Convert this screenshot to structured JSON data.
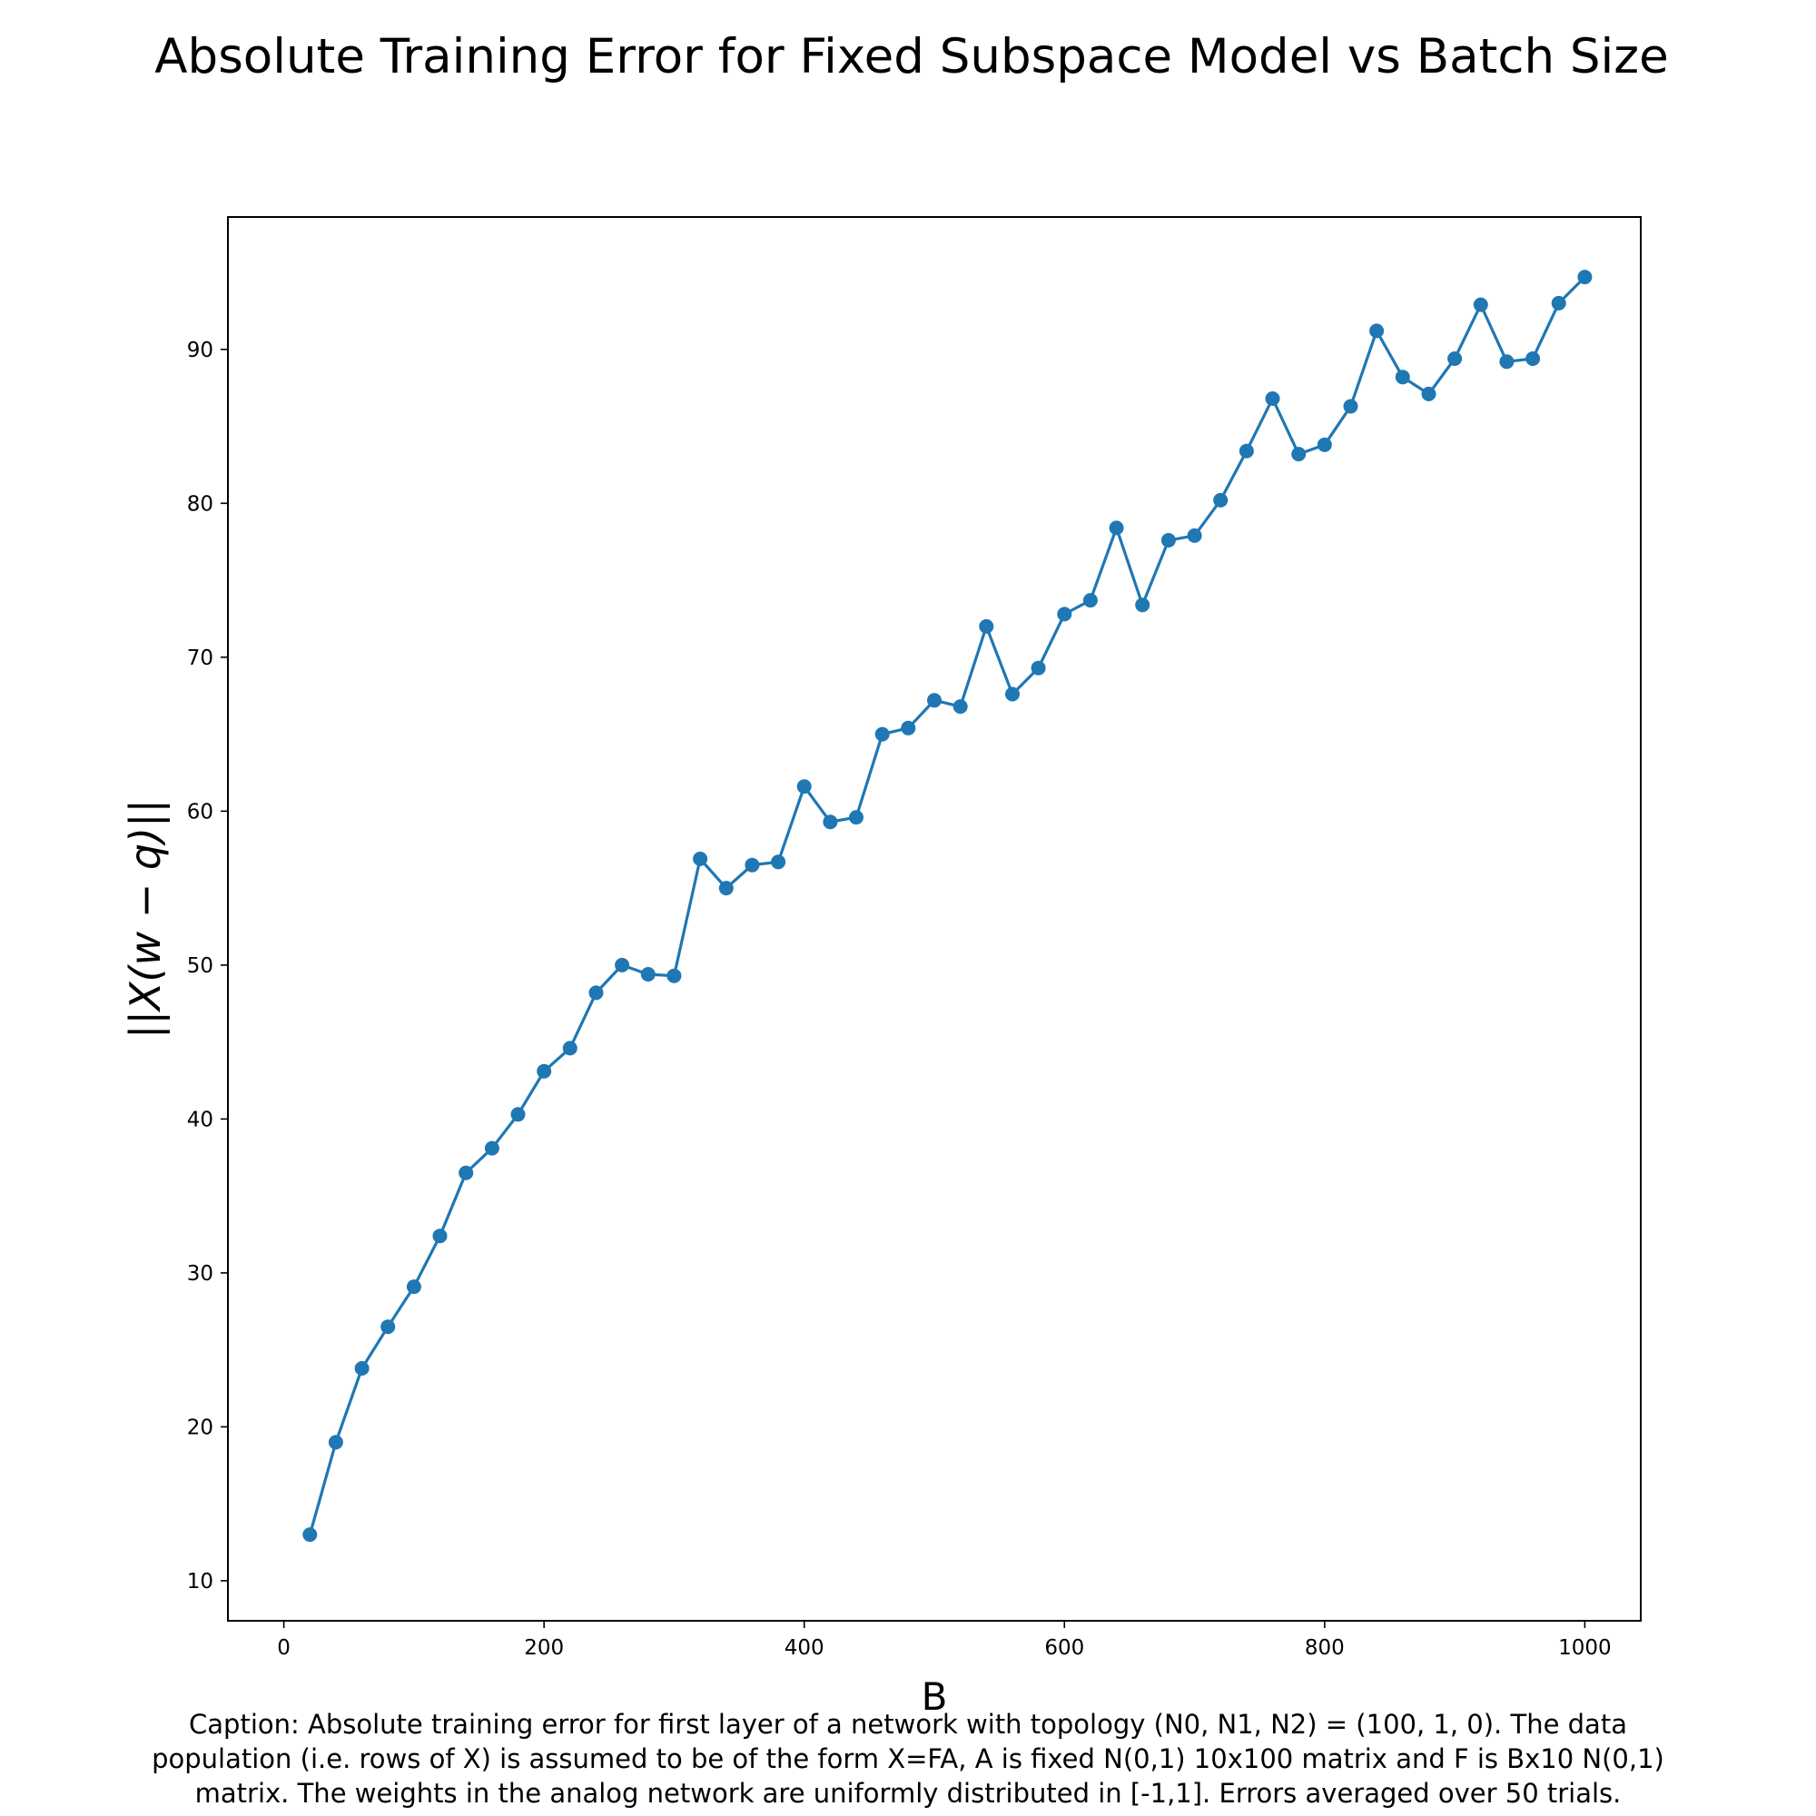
{
  "chart_data": {
    "type": "line",
    "title": "Absolute Training Error for Fixed Subspace Model vs Batch Size",
    "xlabel": "B",
    "ylabel": "||X(w − q)||",
    "xlim": [
      -43,
      1043
    ],
    "ylim": [
      7.4,
      98.6
    ],
    "xticks": [
      0,
      200,
      400,
      600,
      800,
      1000
    ],
    "yticks": [
      10,
      20,
      30,
      40,
      50,
      60,
      70,
      80,
      90
    ],
    "grid": false,
    "line_color": "#1f77b4",
    "marker": "circle",
    "series": [
      {
        "x": [
          20,
          40,
          60,
          80,
          100,
          120,
          140,
          160,
          180,
          200,
          220,
          240,
          260,
          280,
          300,
          320,
          340,
          360,
          380,
          400,
          420,
          440,
          460,
          480,
          500,
          520,
          540,
          560,
          580,
          600,
          620,
          640,
          660,
          680,
          700,
          720,
          740,
          760,
          780,
          800,
          820,
          840,
          860,
          880,
          900,
          920,
          940,
          960,
          980,
          1000
        ],
        "y": [
          13.0,
          19.0,
          23.8,
          26.5,
          29.1,
          32.4,
          36.5,
          38.1,
          40.3,
          43.1,
          44.6,
          48.2,
          50.0,
          49.4,
          49.3,
          56.9,
          55.0,
          56.5,
          56.7,
          61.6,
          59.3,
          59.6,
          65.0,
          65.4,
          67.2,
          66.8,
          72.0,
          67.6,
          69.3,
          72.8,
          73.7,
          78.4,
          73.4,
          77.6,
          77.9,
          80.2,
          83.4,
          86.8,
          83.2,
          83.8,
          86.3,
          91.2,
          88.2,
          87.1,
          89.4,
          92.9,
          89.2,
          89.4,
          93.0,
          94.7
        ]
      }
    ]
  },
  "caption": {
    "line1": "Caption: Absolute training error for first layer of a network with topology (N0, N1, N2) = (100, 1, 0). The data",
    "line2": "population (i.e. rows of X) is assumed to be of the form X=FA, A is fixed N(0,1) 10x100 matrix and F is Bx10 N(0,1)",
    "line3": "matrix. The weights in the analog network are uniformly distributed in [-1,1]. Errors averaged over 50 trials."
  }
}
